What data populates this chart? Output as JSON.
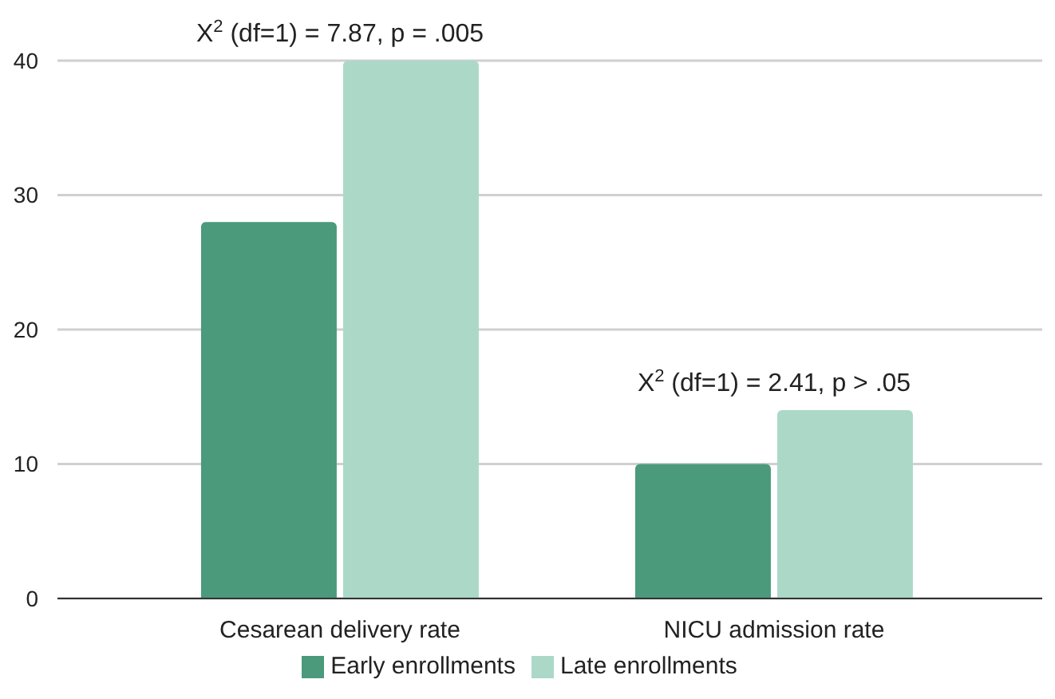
{
  "chart_data": {
    "type": "bar",
    "categories": [
      "Cesarean delivery rate",
      "NICU admission rate"
    ],
    "series": [
      {
        "name": "Early enrollments",
        "color": "#4a9a7b",
        "values": [
          28,
          10
        ]
      },
      {
        "name": "Late enrollments",
        "color": "#acd8c8",
        "values": [
          40,
          14
        ]
      }
    ],
    "ylim": [
      0,
      40
    ],
    "yticks": [
      0,
      10,
      20,
      30,
      40
    ],
    "grid": "y",
    "legend": "bottom",
    "annotations": [
      "X$^{2}$ (df=1) = 7.87, p = .005",
      "X$^{2}$ (df=1) = 2.41, p > .05"
    ]
  }
}
